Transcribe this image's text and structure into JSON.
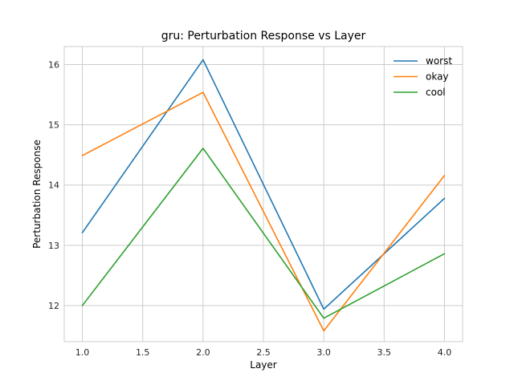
{
  "chart_data": {
    "type": "line",
    "title": "gru: Perturbation Response vs Layer",
    "xlabel": "Layer",
    "ylabel": "Perturbation Response",
    "x": [
      1.0,
      2.0,
      3.0,
      4.0
    ],
    "xlim": [
      0.85,
      4.15
    ],
    "ylim": [
      11.4,
      16.3
    ],
    "xticks": [
      1.0,
      1.5,
      2.0,
      2.5,
      3.0,
      3.5,
      4.0
    ],
    "xtick_labels": [
      "1.0",
      "1.5",
      "2.0",
      "2.5",
      "3.0",
      "3.5",
      "4.0"
    ],
    "yticks": [
      12,
      13,
      14,
      15,
      16
    ],
    "ytick_labels": [
      "12",
      "13",
      "14",
      "15",
      "16"
    ],
    "grid": true,
    "legend_position": "top-right",
    "series": [
      {
        "name": "worst",
        "color": "#1f77b4",
        "values": [
          13.21,
          16.08,
          11.94,
          13.78
        ]
      },
      {
        "name": "okay",
        "color": "#ff7f0e",
        "values": [
          14.49,
          15.54,
          11.58,
          14.16
        ]
      },
      {
        "name": "cool",
        "color": "#2ca02c",
        "values": [
          12.0,
          14.61,
          11.79,
          12.86
        ]
      }
    ]
  }
}
